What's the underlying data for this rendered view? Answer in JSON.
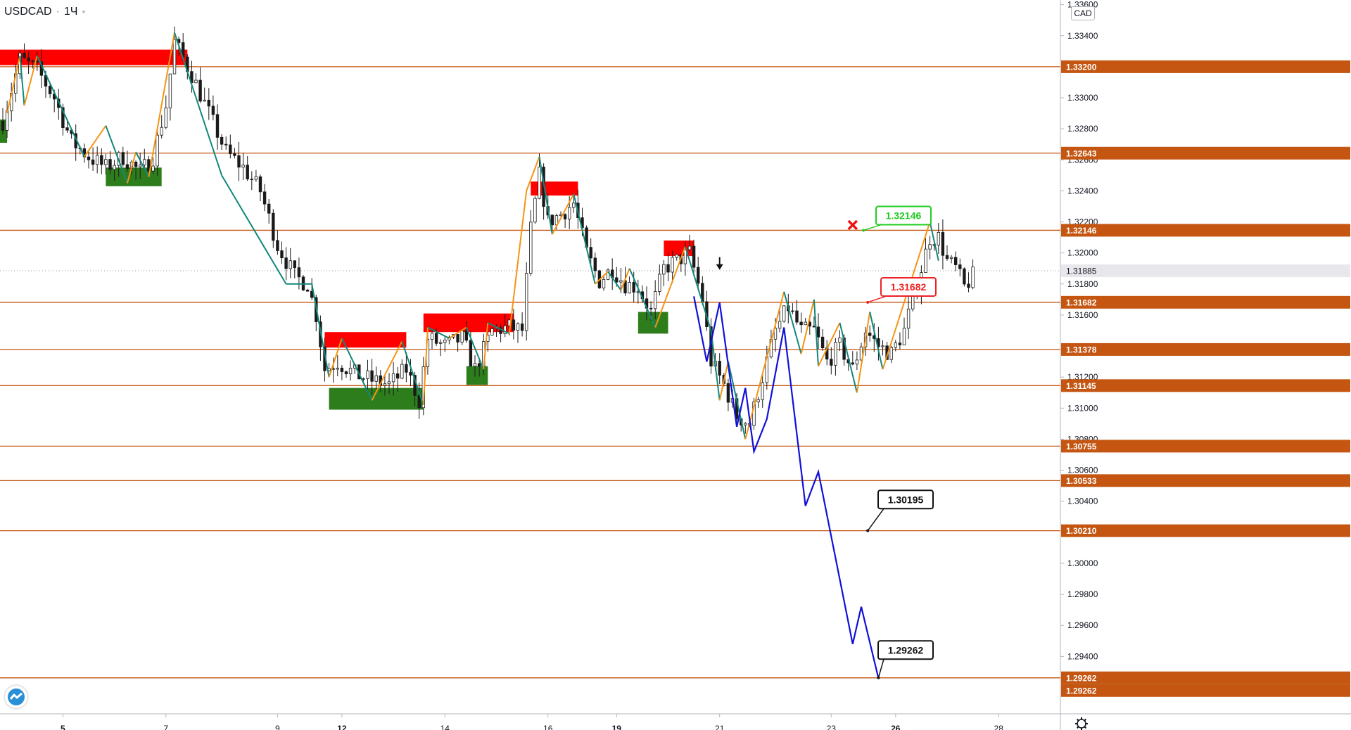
{
  "header": {
    "symbol": "USDCAD",
    "interval": "1Ч",
    "currency": "CAD"
  },
  "chart_data": {
    "type": "candlestick",
    "title": "USDCAD · 1Ч",
    "ylim": [
      1.2903,
      1.3363
    ],
    "y_ticks": [
      "1.33600",
      "1.33400",
      "1.33000",
      "1.32800",
      "1.32600",
      "1.32400",
      "1.32200",
      "1.32000",
      "1.31800",
      "1.31600",
      "1.31200",
      "1.31000",
      "1.30800",
      "1.30600",
      "1.30400",
      "1.30000",
      "1.29800",
      "1.29600",
      "1.29400"
    ],
    "x_ticks": [
      {
        "label": "5",
        "bold": true,
        "idx": 14
      },
      {
        "label": "7",
        "bold": false,
        "idx": 38
      },
      {
        "label": "9",
        "bold": false,
        "idx": 64
      },
      {
        "label": "12",
        "bold": true,
        "idx": 79
      },
      {
        "label": "14",
        "bold": false,
        "idx": 103
      },
      {
        "label": "16",
        "bold": false,
        "idx": 127
      },
      {
        "label": "19",
        "bold": true,
        "idx": 143
      },
      {
        "label": "21",
        "bold": false,
        "idx": 167
      },
      {
        "label": "23",
        "bold": false,
        "idx": 193
      },
      {
        "label": "26",
        "bold": true,
        "idx": 208
      },
      {
        "label": "28",
        "bold": false,
        "idx": 232
      }
    ],
    "levels": [
      {
        "value": 1.332,
        "label": "1.33200"
      },
      {
        "value": 1.32643,
        "label": "1.32643"
      },
      {
        "value": 1.32146,
        "label": "1.32146"
      },
      {
        "value": 1.31682,
        "label": "1.31682"
      },
      {
        "value": 1.31378,
        "label": "1.31378"
      },
      {
        "value": 1.31145,
        "label": "1.31145"
      },
      {
        "value": 1.30755,
        "label": "1.30755"
      },
      {
        "value": 1.30533,
        "label": "1.30533"
      },
      {
        "value": 1.3021,
        "label": "1.30210"
      },
      {
        "value": 1.29262,
        "label": "1.29262"
      }
    ],
    "current_price": {
      "value": 1.31885,
      "label": "1.31885"
    },
    "extra_price_label": "1.29262",
    "supply_zones": [
      {
        "idx_from": -2,
        "idx_to": 43,
        "low": 1.3321,
        "high": 1.3331
      },
      {
        "idx_from": 75,
        "idx_to": 94,
        "low": 1.3139,
        "high": 1.3149
      },
      {
        "idx_from": 98,
        "idx_to": 119,
        "low": 1.3149,
        "high": 1.3161
      },
      {
        "idx_from": 123,
        "idx_to": 134,
        "low": 1.3237,
        "high": 1.3246
      },
      {
        "idx_from": 154,
        "idx_to": 161,
        "low": 1.3198,
        "high": 1.3208
      }
    ],
    "demand_zones": [
      {
        "idx_from": -2,
        "idx_to": 1,
        "low": 1.3271,
        "high": 1.3286
      },
      {
        "idx_from": 24,
        "idx_to": 37,
        "low": 1.3243,
        "high": 1.3255
      },
      {
        "idx_from": 76,
        "idx_to": 98,
        "low": 1.3099,
        "high": 1.3113
      },
      {
        "idx_from": 108,
        "idx_to": 113,
        "low": 1.3115,
        "high": 1.3127
      },
      {
        "idx_from": 148,
        "idx_to": 155,
        "low": 1.3148,
        "high": 1.3162
      }
    ],
    "zigzag": [
      [
        1,
        1.329
      ],
      [
        4,
        1.3327
      ],
      [
        5,
        1.3295
      ],
      [
        8,
        1.3327
      ],
      [
        19,
        1.3262
      ],
      [
        24,
        1.3282
      ],
      [
        29,
        1.3245
      ],
      [
        31,
        1.3265
      ],
      [
        34,
        1.3249
      ],
      [
        40,
        1.3342
      ],
      [
        51,
        1.325
      ],
      [
        66,
        1.318
      ],
      [
        72,
        1.318
      ],
      [
        76,
        1.312
      ],
      [
        79,
        1.3145
      ],
      [
        86,
        1.3105
      ],
      [
        93,
        1.3143
      ],
      [
        98,
        1.3102
      ],
      [
        99,
        1.3152
      ],
      [
        104,
        1.3145
      ],
      [
        108,
        1.3152
      ],
      [
        112,
        1.3125
      ],
      [
        113,
        1.3155
      ],
      [
        118,
        1.3148
      ],
      [
        122,
        1.324
      ],
      [
        125,
        1.3262
      ],
      [
        128,
        1.3212
      ],
      [
        133,
        1.3238
      ],
      [
        138,
        1.318
      ],
      [
        141,
        1.3188
      ],
      [
        144,
        1.3176
      ],
      [
        146,
        1.319
      ],
      [
        152,
        1.3152
      ],
      [
        159,
        1.3204
      ],
      [
        165,
        1.315
      ],
      [
        167,
        1.3105
      ],
      [
        169,
        1.313
      ],
      [
        173,
        1.308
      ],
      [
        182,
        1.3175
      ],
      [
        186,
        1.3135
      ],
      [
        189,
        1.317
      ],
      [
        190,
        1.3127
      ],
      [
        195,
        1.3155
      ],
      [
        199,
        1.311
      ],
      [
        202,
        1.3162
      ],
      [
        205,
        1.3125
      ],
      [
        216,
        1.322
      ],
      [
        218,
        1.3195
      ]
    ],
    "forecast": [
      [
        161,
        1.3172
      ],
      [
        164,
        1.313
      ],
      [
        167,
        1.3168
      ],
      [
        171,
        1.3088
      ],
      [
        173,
        1.3113
      ],
      [
        175,
        1.3072
      ],
      [
        178,
        1.3093
      ],
      [
        182,
        1.3152
      ],
      [
        187,
        1.3037
      ],
      [
        190,
        1.3059
      ],
      [
        198,
        1.2948
      ],
      [
        200,
        1.2972
      ],
      [
        204,
        1.2926
      ]
    ],
    "price_anchor": [
      [
        0,
        1.3285
      ],
      [
        4,
        1.3325
      ],
      [
        8,
        1.3318
      ],
      [
        12,
        1.33
      ],
      [
        16,
        1.3272
      ],
      [
        20,
        1.3262
      ],
      [
        24,
        1.3255
      ],
      [
        28,
        1.3262
      ],
      [
        32,
        1.3252
      ],
      [
        35,
        1.3262
      ],
      [
        38,
        1.3295
      ],
      [
        40,
        1.3336
      ],
      [
        44,
        1.3315
      ],
      [
        48,
        1.329
      ],
      [
        52,
        1.3265
      ],
      [
        56,
        1.3255
      ],
      [
        60,
        1.324
      ],
      [
        64,
        1.3205
      ],
      [
        68,
        1.3185
      ],
      [
        71,
        1.318
      ],
      [
        73,
        1.316
      ],
      [
        75,
        1.3125
      ],
      [
        78,
        1.313
      ],
      [
        82,
        1.3122
      ],
      [
        86,
        1.3118
      ],
      [
        90,
        1.3115
      ],
      [
        94,
        1.3125
      ],
      [
        97,
        1.3105
      ],
      [
        99,
        1.3145
      ],
      [
        103,
        1.314
      ],
      [
        107,
        1.3145
      ],
      [
        110,
        1.3125
      ],
      [
        114,
        1.315
      ],
      [
        118,
        1.3152
      ],
      [
        121,
        1.315
      ],
      [
        123,
        1.3215
      ],
      [
        125,
        1.325
      ],
      [
        127,
        1.322
      ],
      [
        130,
        1.3225
      ],
      [
        133,
        1.3232
      ],
      [
        136,
        1.32
      ],
      [
        139,
        1.3182
      ],
      [
        142,
        1.319
      ],
      [
        145,
        1.318
      ],
      [
        148,
        1.3178
      ],
      [
        151,
        1.3162
      ],
      [
        154,
        1.319
      ],
      [
        157,
        1.3195
      ],
      [
        160,
        1.32
      ],
      [
        163,
        1.317
      ],
      [
        165,
        1.313
      ],
      [
        168,
        1.3115
      ],
      [
        171,
        1.3095
      ],
      [
        174,
        1.309
      ],
      [
        177,
        1.312
      ],
      [
        180,
        1.315
      ],
      [
        183,
        1.3165
      ],
      [
        186,
        1.315
      ],
      [
        189,
        1.315
      ],
      [
        192,
        1.313
      ],
      [
        195,
        1.314
      ],
      [
        198,
        1.3125
      ],
      [
        201,
        1.315
      ],
      [
        204,
        1.314
      ],
      [
        207,
        1.3135
      ],
      [
        210,
        1.315
      ],
      [
        213,
        1.318
      ],
      [
        216,
        1.321
      ],
      [
        218,
        1.321
      ],
      [
        220,
        1.3195
      ],
      [
        222,
        1.319
      ],
      [
        224,
        1.3178
      ],
      [
        226,
        1.3185
      ]
    ],
    "callouts": [
      {
        "text": "1.32146",
        "color": "#22cc22",
        "fill": "#ffffff"
      },
      {
        "text": "1.31682",
        "color": "#ee2222",
        "fill": "#ffffff"
      },
      {
        "text": "1.30195",
        "color": "#111111",
        "fill": "#ffffff"
      },
      {
        "text": "1.29262",
        "color": "#111111",
        "fill": "#ffffff"
      }
    ],
    "markers": {
      "cross": "cross-icon",
      "arrow": "down-arrow-icon"
    },
    "colors": {
      "level_line": "#c45612",
      "level_label_bg": "#c45612",
      "supply": "#ff0000",
      "demand": "#2e7d1c",
      "zigzag_up": "#f59414",
      "zigzag_down": "#13877c",
      "forecast": "#1010d8",
      "candle": "#1a1a1a",
      "current_label_bg": "#e8e8ec",
      "grid_axis": "#b2b5be"
    }
  }
}
